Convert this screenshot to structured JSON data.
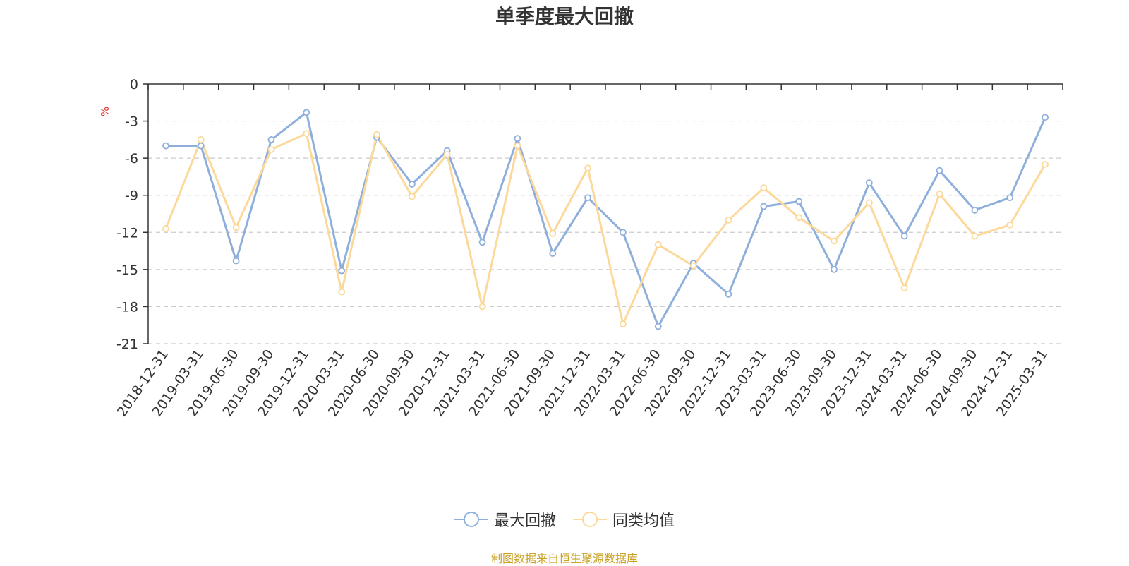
{
  "title": "单季度最大回撤",
  "source": "制图数据来自恒生聚源数据库",
  "chart_data": {
    "type": "line",
    "title": "单季度最大回撤",
    "ylabel": "%",
    "xlabel": "",
    "ylim": [
      -21,
      0
    ],
    "yticks": [
      0,
      -3,
      -6,
      -9,
      -12,
      -15,
      -18,
      -21
    ],
    "grid": true,
    "legend_position": "bottom",
    "categories": [
      "2018-12-31",
      "2019-03-31",
      "2019-06-30",
      "2019-09-30",
      "2019-12-31",
      "2020-03-31",
      "2020-06-30",
      "2020-09-30",
      "2020-12-31",
      "2021-03-31",
      "2021-06-30",
      "2021-09-30",
      "2021-12-31",
      "2022-03-31",
      "2022-06-30",
      "2022-09-30",
      "2022-12-31",
      "2023-03-31",
      "2023-06-30",
      "2023-09-30",
      "2023-12-31",
      "2024-03-31",
      "2024-06-30",
      "2024-09-30",
      "2024-12-31",
      "2025-03-31"
    ],
    "series": [
      {
        "name": "最大回撤",
        "color": "#8eafdb",
        "values": [
          -5.0,
          -5.0,
          -14.3,
          -4.5,
          -2.3,
          -15.1,
          -4.3,
          -8.1,
          -5.4,
          -12.8,
          -4.4,
          -13.7,
          -9.2,
          -12.0,
          -19.6,
          -14.5,
          -17.0,
          -9.9,
          -9.5,
          -15.0,
          -8.0,
          -12.3,
          -7.0,
          -10.2,
          -9.2,
          -2.7
        ]
      },
      {
        "name": "同类均值",
        "color": "#fcd99a",
        "values": [
          -11.7,
          -4.5,
          -11.6,
          -5.3,
          -4.0,
          -16.8,
          -4.1,
          -9.1,
          -5.7,
          -18.0,
          -5.0,
          -12.1,
          -6.8,
          -19.4,
          -13.0,
          -14.7,
          -11.0,
          -8.4,
          -10.8,
          -12.7,
          -9.6,
          -16.5,
          -8.9,
          -12.3,
          -11.4,
          -6.5
        ]
      }
    ]
  },
  "legend": {
    "items": [
      "最大回撤",
      "同类均值"
    ]
  }
}
